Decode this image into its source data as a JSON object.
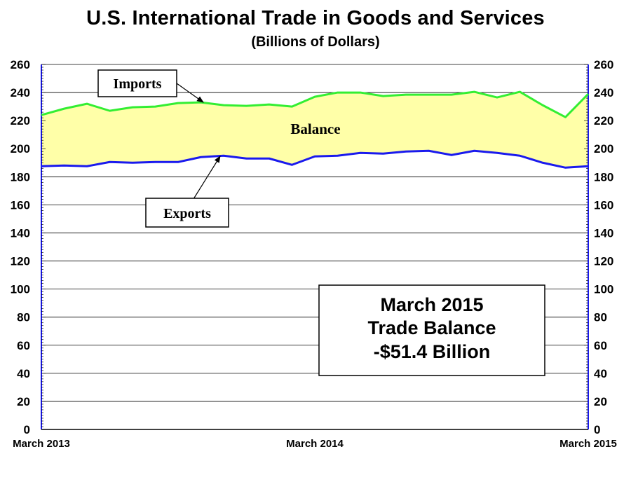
{
  "chart_data": {
    "type": "area",
    "title": "U.S. International Trade in Goods and Services",
    "subtitle": "(Billions of Dollars)",
    "ylim": [
      0,
      260
    ],
    "yticks": [
      0,
      20,
      40,
      60,
      80,
      100,
      120,
      140,
      160,
      180,
      200,
      220,
      240,
      260
    ],
    "x_tick_labels": [
      {
        "index": 0,
        "label": "March 2013"
      },
      {
        "index": 12,
        "label": "March 2014"
      },
      {
        "index": 24,
        "label": "March 2015"
      }
    ],
    "grid": "horizontal",
    "series": [
      {
        "name": "Imports",
        "color": "#33ee33",
        "values": [
          224,
          228.5,
          232,
          227,
          229.5,
          230,
          232.5,
          233,
          231,
          230.5,
          231.5,
          230,
          237,
          240,
          240,
          237.5,
          238.5,
          238.5,
          238.5,
          240.5,
          236.5,
          240.5,
          231,
          222.5,
          239
        ]
      },
      {
        "name": "Exports",
        "color": "#1a1aee",
        "values": [
          187.5,
          188,
          187.5,
          190.5,
          190,
          190.5,
          190.5,
          194,
          195,
          193,
          193,
          188.5,
          194.5,
          195,
          197,
          196.5,
          198,
          198.5,
          195.5,
          198.5,
          197,
          195,
          190,
          186.5,
          187.5
        ]
      }
    ],
    "fill_between": {
      "label": "Balance",
      "color": "#ffffa8"
    },
    "annotations": {
      "imports_label": "Imports",
      "exports_label": "Exports",
      "balance_label": "Balance",
      "info_box": [
        "March 2015",
        "Trade Balance",
        "-$51.4 Billion"
      ]
    }
  }
}
